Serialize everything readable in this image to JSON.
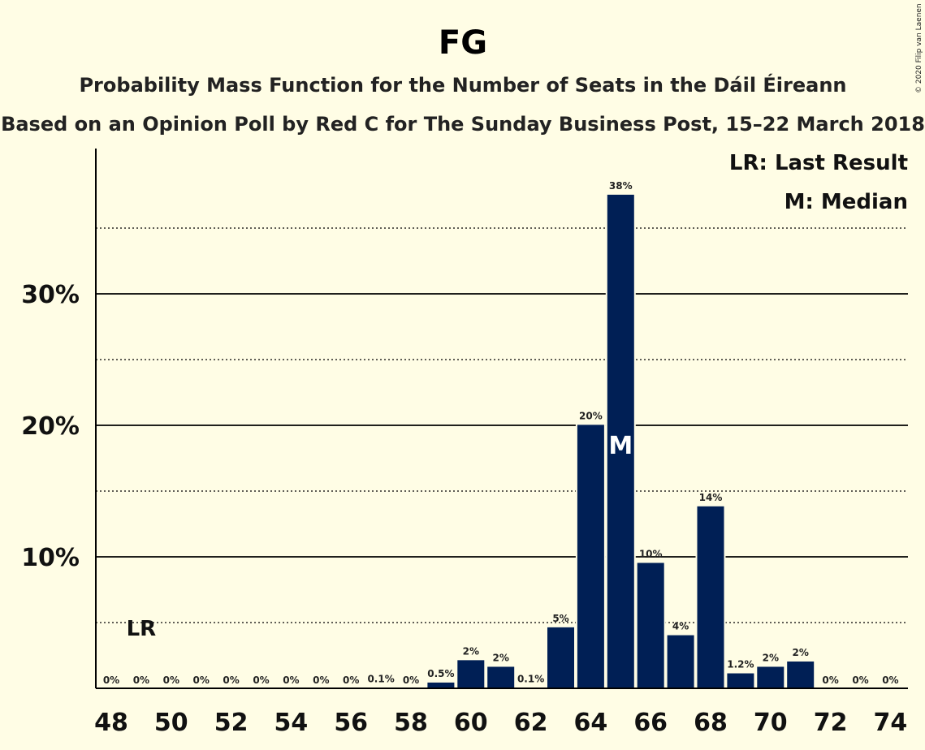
{
  "chart_data": {
    "type": "bar",
    "title": "FG",
    "subtitle": "Probability Mass Function for the Number of Seats in the Dáil Éireann",
    "subtitle2": "Based on an Opinion Poll by Red C for The Sunday Business Post, 15–22 March 2018",
    "copyright": "© 2020 Filip van Laenen",
    "legend": [
      "LR: Last Result",
      "M: Median"
    ],
    "legend_position": "top-right",
    "x": [
      48,
      49,
      50,
      51,
      52,
      53,
      54,
      55,
      56,
      57,
      58,
      59,
      60,
      61,
      62,
      63,
      64,
      65,
      66,
      67,
      68,
      69,
      70,
      71,
      72,
      73,
      74
    ],
    "values": [
      0,
      0,
      0,
      0,
      0,
      0,
      0,
      0,
      0,
      0.1,
      0,
      0.5,
      2.2,
      1.7,
      0.1,
      4.7,
      20.1,
      37.6,
      9.6,
      4.1,
      13.9,
      1.2,
      1.7,
      2.1,
      0,
      0,
      0
    ],
    "data_labels": [
      "0%",
      "0%",
      "0%",
      "0%",
      "0%",
      "0%",
      "0%",
      "0%",
      "0%",
      "0.1%",
      "0%",
      "0.5%",
      "2%",
      "2%",
      "0.1%",
      "5%",
      "20%",
      "38%",
      "10%",
      "4%",
      "14%",
      "1.2%",
      "2%",
      "2%",
      "0%",
      "0%",
      "0%"
    ],
    "x_ticks": [
      48,
      50,
      52,
      54,
      56,
      58,
      60,
      62,
      64,
      66,
      68,
      70,
      72,
      74
    ],
    "y_ticks": [
      {
        "value": 10,
        "label": "10%"
      },
      {
        "value": 20,
        "label": "20%"
      },
      {
        "value": 30,
        "label": "30%"
      }
    ],
    "y_minor_gridlines": [
      5,
      15,
      25,
      35
    ],
    "ylim": [
      0,
      41
    ],
    "last_result": {
      "x": 49,
      "label": "LR"
    },
    "median": {
      "x": 65,
      "label": "M"
    },
    "colors": {
      "bar": "#001f55",
      "background": "#fffde5",
      "axis": "#000000"
    }
  }
}
